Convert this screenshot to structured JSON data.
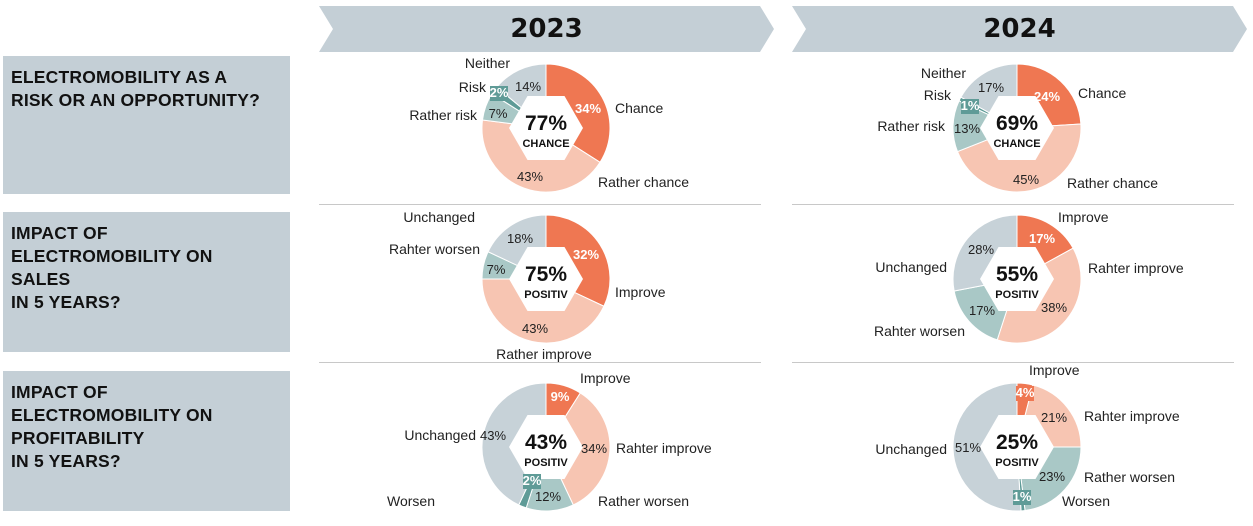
{
  "colors": {
    "dark_orange": "#ef7752",
    "light_orange": "#f7c5b2",
    "teal": "#5f9b97",
    "light_teal": "#a9c8c6",
    "grey": "#c7d2d8",
    "panel": "#c4cfd6"
  },
  "years": [
    "2023",
    "2024"
  ],
  "questions": [
    "ELECTROMOBILITY AS A\nRISK OR AN OPPORTUNITY?",
    "IMPACT OF\nELECTROMOBILITY ON\nSALES\nIN 5 YEARS?",
    "IMPACT OF\nELECTROMOBILITY ON\nPROFITABILITY\nIN 5 YEARS?"
  ],
  "chart_data": [
    {
      "type": "donut",
      "title": "ELECTROMOBILITY AS A RISK OR AN OPPORTUNITY? – 2023",
      "center_value": "77%",
      "center_label": "CHANCE",
      "slices": [
        {
          "label": "Chance",
          "value": 34,
          "value_label": "34%",
          "color": "dark_orange"
        },
        {
          "label": "Rather chance",
          "value": 43,
          "value_label": "43%",
          "color": "light_orange"
        },
        {
          "label": "Rather risk",
          "value": 7,
          "value_label": "7%",
          "color": "light_teal"
        },
        {
          "label": "Risk",
          "value": 2,
          "value_label": "2%",
          "color": "teal"
        },
        {
          "label": "Neither",
          "value": 14,
          "value_label": "14%",
          "color": "grey"
        }
      ]
    },
    {
      "type": "donut",
      "title": "ELECTROMOBILITY AS A RISK OR AN OPPORTUNITY? – 2024",
      "center_value": "69%",
      "center_label": "CHANCE",
      "slices": [
        {
          "label": "Chance",
          "value": 24,
          "value_label": "24%",
          "color": "dark_orange"
        },
        {
          "label": "Rather chance",
          "value": 45,
          "value_label": "45%",
          "color": "light_orange"
        },
        {
          "label": "Rather risk",
          "value": 13,
          "value_label": "13%",
          "color": "light_teal"
        },
        {
          "label": "Risk",
          "value": 1,
          "value_label": "1%",
          "color": "teal"
        },
        {
          "label": "Neither",
          "value": 17,
          "value_label": "17%",
          "color": "grey"
        }
      ]
    },
    {
      "type": "donut",
      "title": "IMPACT OF ELECTROMOBILITY ON SALES IN 5 YEARS? – 2023",
      "center_value": "75%",
      "center_label": "POSITIV",
      "slices": [
        {
          "label": "Improve",
          "value": 32,
          "value_label": "32%",
          "color": "dark_orange"
        },
        {
          "label": "Rather improve",
          "value": 43,
          "value_label": "43%",
          "color": "light_orange"
        },
        {
          "label": "Rahter worsen",
          "value": 7,
          "value_label": "7%",
          "color": "light_teal"
        },
        {
          "label": "Unchanged",
          "value": 18,
          "value_label": "18%",
          "color": "grey"
        }
      ]
    },
    {
      "type": "donut",
      "title": "IMPACT OF ELECTROMOBILITY ON SALES IN 5 YEARS? – 2024",
      "center_value": "55%",
      "center_label": "POSITIV",
      "slices": [
        {
          "label": "Improve",
          "value": 17,
          "value_label": "17%",
          "color": "dark_orange"
        },
        {
          "label": "Rahter improve",
          "value": 38,
          "value_label": "38%",
          "color": "light_orange"
        },
        {
          "label": "Rahter worsen",
          "value": 17,
          "value_label": "17%",
          "color": "light_teal"
        },
        {
          "label": "Unchanged",
          "value": 28,
          "value_label": "28%",
          "color": "grey"
        }
      ]
    },
    {
      "type": "donut",
      "title": "IMPACT OF ELECTROMOBILITY ON PROFITABILITY IN 5 YEARS? – 2023",
      "center_value": "43%",
      "center_label": "POSITIV",
      "slices": [
        {
          "label": "Improve",
          "value": 9,
          "value_label": "9%",
          "color": "dark_orange"
        },
        {
          "label": "Rahter improve",
          "value": 34,
          "value_label": "34%",
          "color": "light_orange"
        },
        {
          "label": "Rather worsen",
          "value": 12,
          "value_label": "12%",
          "color": "light_teal"
        },
        {
          "label": "Worsen",
          "value": 2,
          "value_label": "2%",
          "color": "teal"
        },
        {
          "label": "Unchanged",
          "value": 43,
          "value_label": "43%",
          "color": "grey"
        }
      ]
    },
    {
      "type": "donut",
      "title": "IMPACT OF ELECTROMOBILITY ON PROFITABILITY IN 5 YEARS? – 2024",
      "center_value": "25%",
      "center_label": "POSITIV",
      "slices": [
        {
          "label": "Improve",
          "value": 4,
          "value_label": "4%",
          "color": "dark_orange"
        },
        {
          "label": "Rahter improve",
          "value": 21,
          "value_label": "21%",
          "color": "light_orange"
        },
        {
          "label": "Rather worsen",
          "value": 23,
          "value_label": "23%",
          "color": "light_teal"
        },
        {
          "label": "Worsen",
          "value": 1,
          "value_label": "1%",
          "color": "teal"
        },
        {
          "label": "Unchanged",
          "value": 51,
          "value_label": "51%",
          "color": "grey"
        }
      ]
    }
  ]
}
